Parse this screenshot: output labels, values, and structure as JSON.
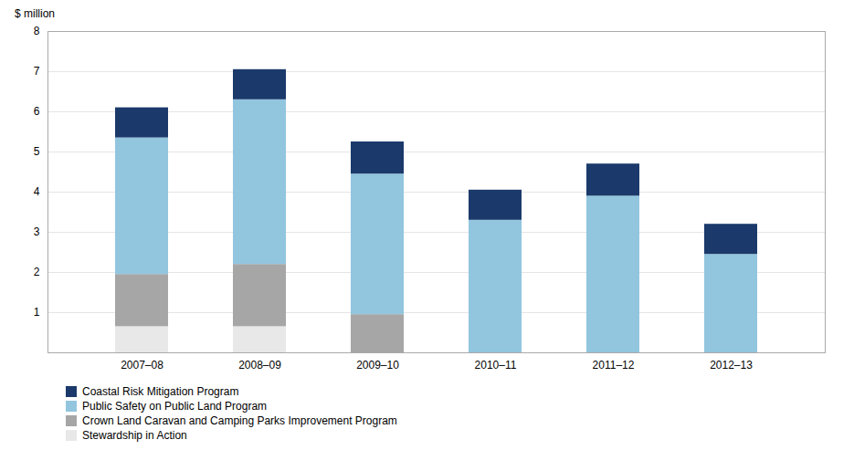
{
  "chart_data": {
    "type": "bar",
    "stacked": true,
    "ylabel": "$ million",
    "categories": [
      "2007–08",
      "2008–09",
      "2009–10",
      "2010–11",
      "2011–12",
      "2012–13"
    ],
    "series": [
      {
        "name": "Stewardship in Action",
        "color": "#e8e8e8",
        "values": [
          0.65,
          0.65,
          0.0,
          0.0,
          0.0,
          0.0
        ]
      },
      {
        "name": "Crown Land Caravan and Camping Parks Improvement Program",
        "color": "#a6a6a6",
        "values": [
          1.3,
          1.55,
          0.95,
          0.0,
          0.0,
          0.0
        ]
      },
      {
        "name": "Public Safety on Public Land Program",
        "color": "#92c5de",
        "values": [
          3.4,
          4.1,
          3.5,
          3.3,
          3.9,
          2.45
        ]
      },
      {
        "name": "Coastal Risk Mitigation Program",
        "color": "#1b3a6b",
        "values": [
          0.75,
          0.75,
          0.8,
          0.75,
          0.8,
          0.75
        ]
      }
    ],
    "ylim": [
      0,
      8
    ],
    "yticks": [
      1,
      2,
      3,
      4,
      5,
      6,
      7,
      8
    ],
    "grid": true,
    "legend": "bottom"
  }
}
